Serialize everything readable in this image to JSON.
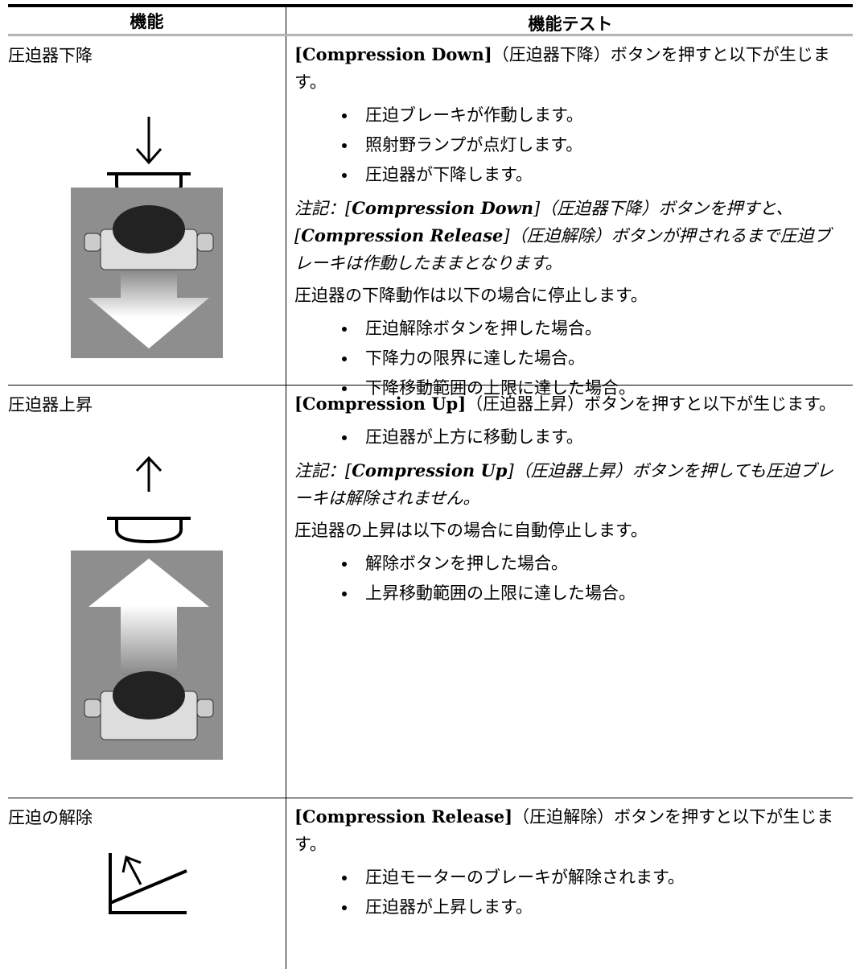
{
  "table": {
    "header": [
      "機能",
      "機能テスト"
    ],
    "rows": [
      {
        "function": "圧迫器下降",
        "test": [
          {
            "intro": [
              "[Compression Down]",
              "（圧迫器下降）ボタンを押すと以下が生じます。"
            ]
          },
          {
            "bullets": [
              "圧迫ブレーキが作動します。",
              "照射野ランプが点灯します。",
              "圧迫器が下降します。"
            ]
          },
          {
            "note": [
              "注記：[",
              "Compression Down",
              "]（圧迫器下降）ボタンを押すと、[",
              "Compression Release",
              "]（圧迫解除）ボタンが押されるまで圧迫ブレーキは作動したままとなります。"
            ]
          },
          {
            "text": "圧迫器の下降動作は以下の場合に停止します。"
          },
          {
            "bullets": [
              "圧迫解除ボタンを押した場合。",
              "下降力の限界に達した場合。",
              "下降移動範囲の上限に達した場合。"
            ]
          }
        ]
      },
      {
        "function": "圧迫器上昇",
        "test": [
          {
            "intro": [
              "[Compression Up]",
              "（圧迫器上昇）ボタンを押すと以下が生じます。"
            ]
          },
          {
            "bullets": [
              "圧迫器が上方に移動します。"
            ]
          },
          {
            "note": [
              "注記：[",
              "Compression Up",
              "]（圧迫器上昇）ボタンを押しても圧迫ブレーキは解除されません。"
            ]
          },
          {
            "text": "圧迫器の上昇は以下の場合に自動停止します。"
          },
          {
            "bullets": [
              "解除ボタンを押した場合。",
              "上昇移動範囲の上限に達した場合。"
            ]
          }
        ]
      },
      {
        "function": "圧迫の解除",
        "test": [
          {
            "intro": [
              "[Compression Release]",
              "（圧迫解除）ボタンを押すと以下が生じます。"
            ]
          },
          {
            "bullets": [
              "圧迫モーターのブレーキが解除されます。",
              "圧迫器が上昇します。"
            ]
          }
        ]
      }
    ]
  }
}
